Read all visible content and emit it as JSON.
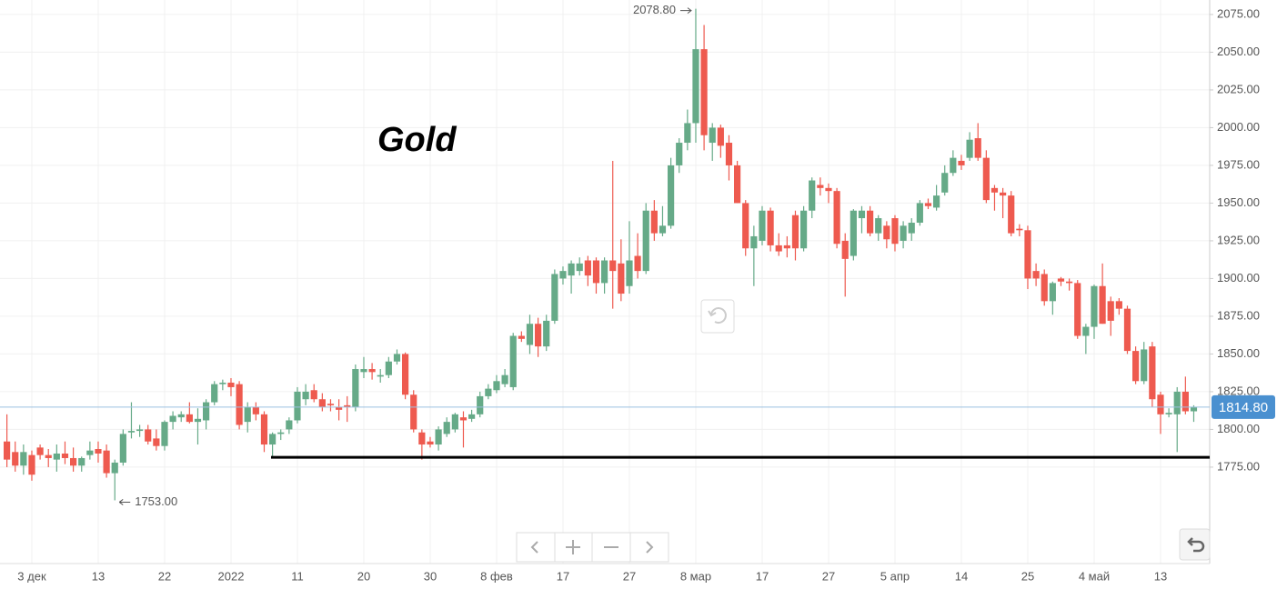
{
  "chart_data": {
    "type": "candlestick",
    "title": "Gold",
    "up_color": "#66aa88",
    "down_color": "#ee5a4f",
    "grid": true,
    "ylim": [
      1711.1,
      2084.6
    ],
    "yticks": [
      {
        "value": 1775,
        "label": "1775.00"
      },
      {
        "value": 1800,
        "label": "1800.00"
      },
      {
        "value": 1825,
        "label": "1825.00"
      },
      {
        "value": 1850,
        "label": "1850.00"
      },
      {
        "value": 1875,
        "label": "1875.00"
      },
      {
        "value": 1900,
        "label": "1900.00"
      },
      {
        "value": 1925,
        "label": "1925.00"
      },
      {
        "value": 1950,
        "label": "1950.00"
      },
      {
        "value": 1975,
        "label": "1975.00"
      },
      {
        "value": 2000,
        "label": "2000.00"
      },
      {
        "value": 2025,
        "label": "2025.00"
      },
      {
        "value": 2050,
        "label": "2050.00"
      },
      {
        "value": 2075,
        "label": "2075.00"
      }
    ],
    "last_price": {
      "value": 1814.8,
      "label": "1814.80",
      "color": "#4a90d0"
    },
    "support_line": 1781.5,
    "annotations": [
      {
        "value": 2078.8,
        "label": "2078.80",
        "of": "high"
      },
      {
        "value": 1753,
        "label": "1753.00",
        "of": "low"
      }
    ],
    "categories": [
      null,
      null,
      null,
      "3 дек",
      null,
      null,
      null,
      null,
      null,
      null,
      null,
      "13",
      null,
      null,
      null,
      null,
      null,
      null,
      null,
      "22",
      null,
      null,
      null,
      null,
      null,
      null,
      null,
      "2022",
      null,
      null,
      null,
      null,
      null,
      null,
      null,
      "11",
      null,
      null,
      null,
      null,
      null,
      null,
      null,
      "20",
      null,
      null,
      null,
      null,
      null,
      null,
      null,
      "30",
      null,
      null,
      null,
      null,
      null,
      null,
      null,
      "8 фев",
      null,
      null,
      null,
      null,
      null,
      null,
      null,
      "17",
      null,
      null,
      null,
      null,
      null,
      null,
      null,
      "27",
      null,
      null,
      null,
      null,
      null,
      null,
      null,
      "8 мар",
      null,
      null,
      null,
      null,
      null,
      null,
      null,
      "17",
      null,
      null,
      null,
      null,
      null,
      null,
      null,
      "27",
      null,
      null,
      null,
      null,
      null,
      null,
      null,
      "5 апр",
      null,
      null,
      null,
      null,
      null,
      null,
      null,
      "14",
      null,
      null,
      null,
      null,
      null,
      null,
      null,
      "25",
      null,
      null,
      null,
      null,
      null,
      null,
      null,
      "4 май",
      null,
      null,
      null,
      null,
      null,
      null,
      null,
      "13",
      null,
      null,
      null,
      null
    ],
    "open": [
      1792,
      1785,
      1776,
      1783,
      1788,
      1783,
      1780,
      1784,
      1781,
      1776,
      1783,
      1787,
      1786,
      1771,
      1778,
      1798,
      1799,
      1800,
      1794,
      1789,
      1805,
      1808,
      1810,
      1805,
      1806,
      1818,
      1830,
      1831,
      1830,
      1805,
      1815,
      1810,
      1790,
      1797,
      1800,
      1806,
      1820,
      1826,
      1820,
      1817,
      1815,
      1816,
      1815,
      1838,
      1840,
      1835,
      1836,
      1845,
      1850,
      1823,
      1798,
      1792,
      1790,
      1797,
      1800,
      1808,
      1807,
      1810,
      1822,
      1826,
      1830,
      1828,
      1862,
      1856,
      1870,
      1855,
      1872,
      1900,
      1902,
      1905,
      1912,
      1912,
      1897,
      1912,
      1910,
      1895,
      1915,
      1905,
      1945,
      1930,
      1935,
      1975,
      1990,
      2003,
      2052,
      1990,
      2000,
      1990,
      1975,
      1950,
      1920,
      1925,
      1945,
      1922,
      1922,
      1942,
      1920,
      1945,
      1962,
      1960,
      1958,
      1925,
      1915,
      1940,
      1945,
      1930,
      1935,
      1940,
      1925,
      1930,
      1937,
      1950,
      1947,
      1957,
      1970,
      1978,
      1980,
      1993,
      1980,
      1960,
      1957,
      1955,
      1933,
      1932,
      1905,
      1903,
      1885,
      1900,
      1898,
      1897,
      1862,
      1868,
      1895,
      1885,
      1885,
      1880,
      1852,
      1832,
      1855,
      1823,
      1810,
      1810,
      1825,
      1812
    ],
    "high": [
      1810,
      1792,
      1790,
      1786,
      1790,
      1787,
      1790,
      1792,
      1788,
      1782,
      1792,
      1792,
      1790,
      1780,
      1800,
      1818,
      1803,
      1803,
      1800,
      1806,
      1812,
      1812,
      1818,
      1814,
      1820,
      1832,
      1833,
      1834,
      1832,
      1818,
      1818,
      1812,
      1798,
      1800,
      1808,
      1828,
      1830,
      1830,
      1824,
      1820,
      1820,
      1822,
      1843,
      1848,
      1844,
      1840,
      1848,
      1853,
      1851,
      1826,
      1800,
      1795,
      1802,
      1808,
      1811,
      1812,
      1813,
      1825,
      1830,
      1836,
      1840,
      1864,
      1865,
      1876,
      1874,
      1876,
      1906,
      1908,
      1912,
      1914,
      1915,
      1914,
      1914,
      1978,
      1926,
      1938,
      1930,
      1950,
      1952,
      1948,
      1980,
      1993,
      2012,
      2078.8,
      2068,
      2003,
      2002,
      1995,
      1978,
      1952,
      1935,
      1948,
      1947,
      1930,
      1928,
      1945,
      1948,
      1967,
      1967,
      1963,
      1960,
      1930,
      1946,
      1948,
      1948,
      1942,
      1938,
      1942,
      1938,
      1940,
      1952,
      1953,
      1962,
      1975,
      1985,
      1982,
      1997,
      2003,
      1985,
      1962,
      1960,
      1958,
      1936,
      1935,
      1910,
      1906,
      1898,
      1901,
      1900,
      1899,
      1870,
      1896,
      1910,
      1888,
      1887,
      1882,
      1855,
      1858,
      1858,
      1825,
      1814,
      1828,
      1835,
      1816
    ],
    "low": [
      1775,
      1772,
      1770,
      1766,
      1780,
      1775,
      1772,
      1777,
      1772,
      1772,
      1780,
      1778,
      1768,
      1753,
      1776,
      1794,
      1795,
      1790,
      1786,
      1786,
      1800,
      1805,
      1804,
      1790,
      1800,
      1816,
      1826,
      1822,
      1800,
      1798,
      1806,
      1785,
      1782,
      1793,
      1797,
      1804,
      1816,
      1818,
      1812,
      1812,
      1806,
      1805,
      1812,
      1834,
      1833,
      1831,
      1834,
      1843,
      1820,
      1798,
      1780,
      1788,
      1786,
      1795,
      1798,
      1788,
      1805,
      1808,
      1820,
      1824,
      1828,
      1826,
      1858,
      1850,
      1848,
      1852,
      1870,
      1896,
      1890,
      1902,
      1895,
      1890,
      1890,
      1880,
      1885,
      1890,
      1900,
      1903,
      1925,
      1928,
      1933,
      1970,
      1985,
      1990,
      1985,
      1978,
      1980,
      1965,
      1950,
      1915,
      1895,
      1922,
      1918,
      1915,
      1914,
      1912,
      1918,
      1940,
      1955,
      1950,
      1920,
      1888,
      1912,
      1930,
      1928,
      1925,
      1920,
      1918,
      1920,
      1925,
      1935,
      1946,
      1945,
      1955,
      1968,
      1972,
      1978,
      1978,
      1950,
      1945,
      1940,
      1928,
      1928,
      1893,
      1895,
      1882,
      1876,
      1895,
      1892,
      1860,
      1850,
      1860,
      1870,
      1862,
      1876,
      1850,
      1830,
      1830,
      1815,
      1797,
      1808,
      1785,
      1810,
      1805
    ],
    "close": [
      1780,
      1776,
      1785,
      1770,
      1783,
      1781,
      1784,
      1781,
      1776,
      1781,
      1786,
      1784,
      1771,
      1778,
      1797,
      1799,
      1800,
      1792,
      1789,
      1805,
      1809,
      1810,
      1805,
      1807,
      1818,
      1830,
      1831,
      1828,
      1803,
      1815,
      1810,
      1790,
      1797,
      1798,
      1806,
      1825,
      1825,
      1820,
      1815,
      1816,
      1813,
      1815,
      1840,
      1840,
      1838,
      1836,
      1845,
      1850,
      1823,
      1800,
      1790,
      1790,
      1800,
      1805,
      1810,
      1806,
      1810,
      1822,
      1827,
      1832,
      1836,
      1862,
      1860,
      1870,
      1855,
      1872,
      1903,
      1905,
      1910,
      1910,
      1902,
      1897,
      1912,
      1905,
      1890,
      1912,
      1905,
      1945,
      1930,
      1935,
      1975,
      1990,
      2003,
      2052,
      1995,
      2000,
      1988,
      1975,
      1950,
      1920,
      1928,
      1945,
      1922,
      1918,
      1920,
      1920,
      1945,
      1965,
      1960,
      1958,
      1923,
      1913,
      1945,
      1945,
      1930,
      1940,
      1926,
      1923,
      1935,
      1937,
      1950,
      1948,
      1955,
      1970,
      1980,
      1975,
      1992,
      1980,
      1952,
      1957,
      1955,
      1930,
      1932,
      1900,
      1900,
      1885,
      1897,
      1898,
      1897,
      1862,
      1868,
      1895,
      1870,
      1872,
      1880,
      1852,
      1832,
      1853,
      1820,
      1810,
      1811,
      1825,
      1812,
      1814.8
    ]
  }
}
